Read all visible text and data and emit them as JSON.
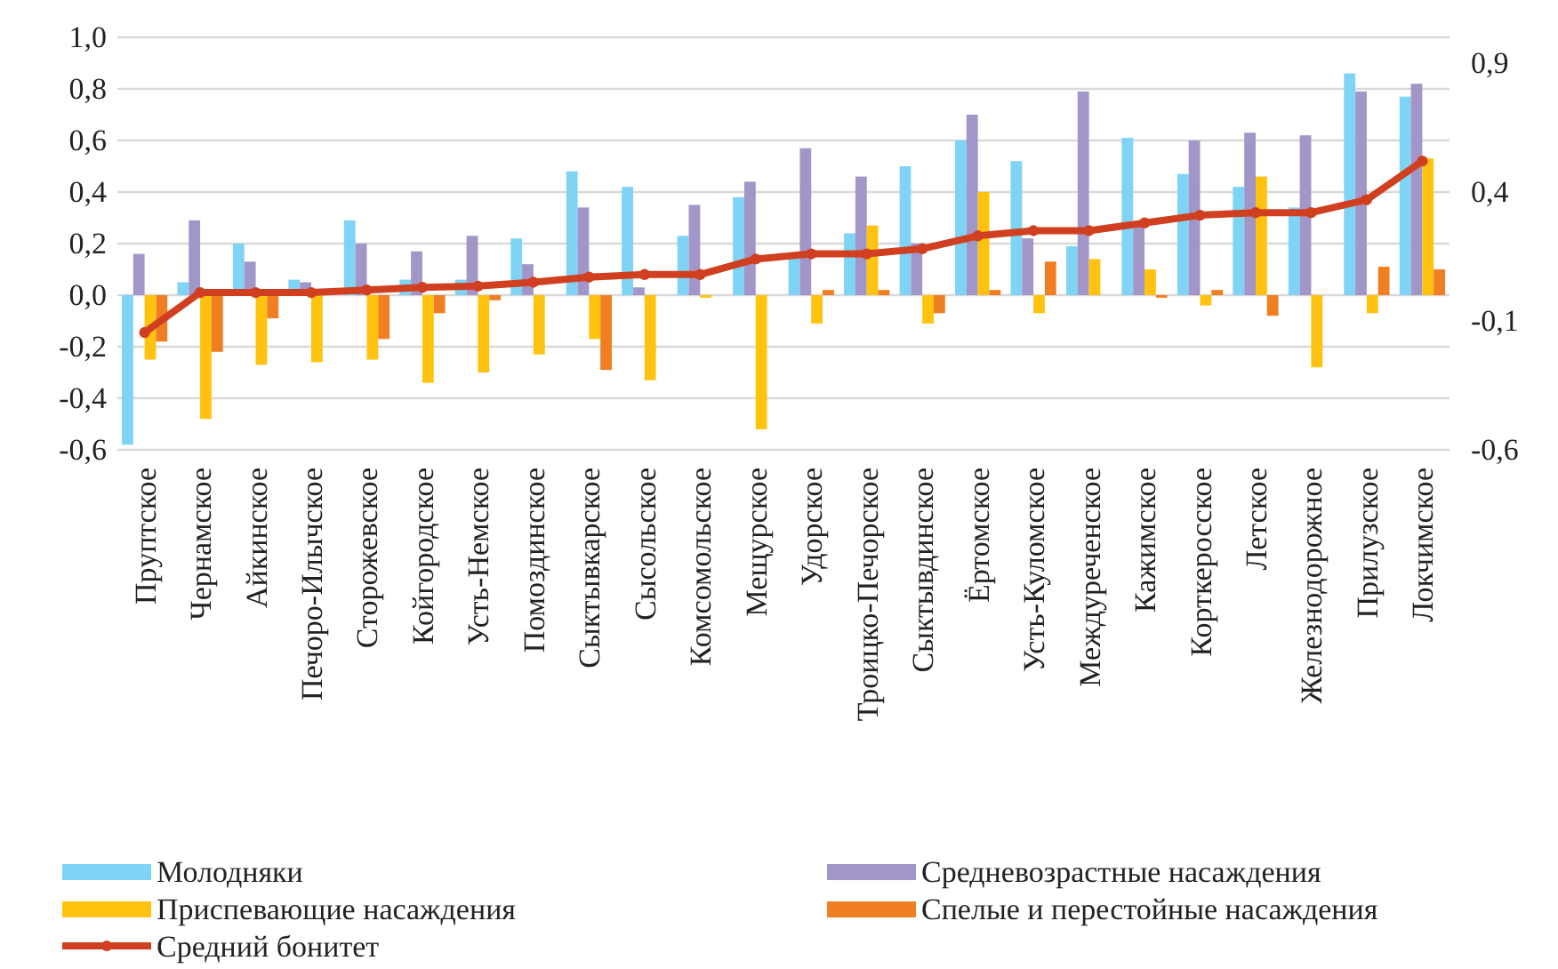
{
  "chart_data": {
    "type": "bar",
    "categories": [
      "Пруптское",
      "Чернамское",
      "Айкинское",
      "Печоро-Илычское",
      "Сторожевское",
      "Койгородское",
      "Усть-Немское",
      "Помоздинское",
      "Сыктывкарское",
      "Сысольское",
      "Комсомольское",
      "Мещурское",
      "Удорское",
      "Троицко-Печорское",
      "Сыктывдинское",
      "Ёртомское",
      "Усть-Куломское",
      "Междуреченское",
      "Кажимское",
      "Корткеросское",
      "Летское",
      "Железнодорожное",
      "Прилузское",
      "Локчимское"
    ],
    "series": [
      {
        "name": "Молодняки",
        "color": "#7fd3f5",
        "values": [
          -0.58,
          0.05,
          0.2,
          0.06,
          0.29,
          0.06,
          0.06,
          0.22,
          0.48,
          0.42,
          0.23,
          0.38,
          0.15,
          0.24,
          0.5,
          0.6,
          0.52,
          0.19,
          0.61,
          0.47,
          0.42,
          0.34,
          0.86,
          0.77
        ]
      },
      {
        "name": "Средневозрастные насаждения",
        "color": "#a295c8",
        "values": [
          0.16,
          0.29,
          0.13,
          0.05,
          0.2,
          0.17,
          0.23,
          0.12,
          0.34,
          0.03,
          0.35,
          0.44,
          0.57,
          0.46,
          0.2,
          0.7,
          0.22,
          0.79,
          0.28,
          0.6,
          0.63,
          0.62,
          0.79,
          0.82
        ]
      },
      {
        "name": "Приспевающие насаждения",
        "color": "#ffc20e",
        "values": [
          -0.25,
          -0.48,
          -0.27,
          -0.26,
          -0.25,
          -0.34,
          -0.3,
          -0.23,
          -0.17,
          -0.33,
          -0.01,
          -0.52,
          -0.11,
          0.27,
          -0.11,
          0.4,
          -0.07,
          0.14,
          0.1,
          -0.04,
          0.46,
          -0.28,
          -0.07,
          0.53
        ]
      },
      {
        "name": "Спелые и перестойные насаждения",
        "color": "#f07f22",
        "values": [
          -0.18,
          -0.22,
          -0.09,
          0,
          -0.17,
          -0.07,
          -0.02,
          0,
          -0.29,
          0,
          0,
          0,
          0.02,
          0.02,
          -0.07,
          0.02,
          0.13,
          0,
          -0.01,
          0.02,
          -0.08,
          0,
          0.11,
          0.1
        ]
      },
      {
        "name": "Средний бонитет",
        "type": "line",
        "axis": "y2",
        "color": "#d04020",
        "marker": "circle",
        "values": [
          -0.145,
          0.01,
          0.01,
          0.01,
          0.02,
          0.03,
          0.035,
          0.05,
          0.07,
          0.08,
          0.08,
          0.14,
          0.16,
          0.16,
          0.18,
          0.23,
          0.25,
          0.25,
          0.28,
          0.31,
          0.32,
          0.32,
          0.37,
          0.52
        ]
      }
    ],
    "ylim": [
      -0.6,
      1.0
    ],
    "yticks": [
      {
        "value": -0.6,
        "label": "-0,6"
      },
      {
        "value": -0.4,
        "label": "-0,4"
      },
      {
        "value": -0.2,
        "label": "-0,2"
      },
      {
        "value": 0,
        "label": "0,0"
      },
      {
        "value": 0.2,
        "label": "0,2"
      },
      {
        "value": 0.4,
        "label": "0,4"
      },
      {
        "value": 0.6,
        "label": "0,6"
      },
      {
        "value": 0.8,
        "label": "0,8"
      },
      {
        "value": 1.0,
        "label": "1,0"
      }
    ],
    "y2lim": [
      -0.6,
      1.0
    ],
    "y2ticks": [
      {
        "value": -0.6,
        "label": "-0,6"
      },
      {
        "value": -0.1,
        "label": "-0,1"
      },
      {
        "value": 0.4,
        "label": "0,4"
      },
      {
        "value": 0.9,
        "label": "0,9"
      }
    ],
    "grid": "y",
    "legend": "bottom"
  }
}
